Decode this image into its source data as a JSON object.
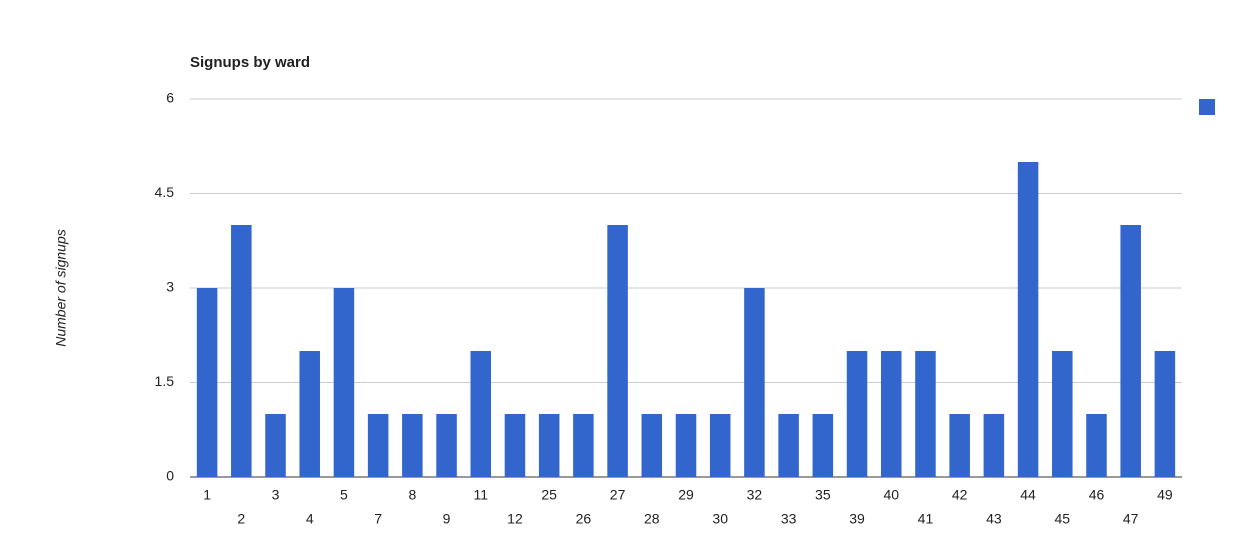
{
  "chart_data": {
    "type": "bar",
    "title": "Signups by ward",
    "y_label": "Number of signups",
    "categories": [
      "1",
      "2",
      "3",
      "4",
      "5",
      "7",
      "8",
      "9",
      "11",
      "12",
      "25",
      "26",
      "27",
      "28",
      "29",
      "30",
      "32",
      "33",
      "35",
      "39",
      "40",
      "41",
      "42",
      "43",
      "44",
      "45",
      "46",
      "47",
      "49"
    ],
    "values": [
      3,
      4,
      1,
      2,
      3,
      1,
      1,
      1,
      2,
      1,
      1,
      1,
      4,
      1,
      1,
      1,
      3,
      1,
      1,
      2,
      2,
      2,
      1,
      1,
      5,
      2,
      1,
      4,
      2
    ],
    "color": "#3366cc",
    "ylim": [
      0,
      6
    ],
    "yticks": [
      0,
      1.5,
      3,
      4.5,
      6
    ],
    "grid": true
  }
}
